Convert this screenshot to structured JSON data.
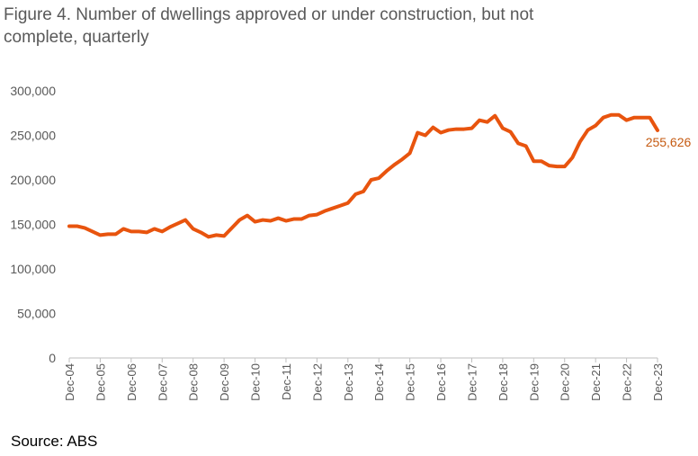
{
  "title": "Figure 4. Number of dwellings approved or under construction,  but not complete, quarterly",
  "source": "Source: ABS",
  "colors": {
    "line": "#E8540E",
    "axis": "#BFBFBF",
    "text": "#595959",
    "label": "#C55A11"
  },
  "chart_data": {
    "type": "line",
    "title": "Figure 4. Number of dwellings approved or under construction,  but not complete, quarterly",
    "xlabel": "",
    "ylabel": "",
    "ylim": [
      0,
      300000
    ],
    "grid": false,
    "yticks": [
      "0",
      "50,000",
      "100,000",
      "150,000",
      "200,000",
      "250,000",
      "300,000"
    ],
    "ytick_values": [
      0,
      50000,
      100000,
      150000,
      200000,
      250000,
      300000
    ],
    "xticks": [
      "Dec-04",
      "Dec-05",
      "Dec-06",
      "Dec-07",
      "Dec-08",
      "Dec-09",
      "Dec-10",
      "Dec-11",
      "Dec-12",
      "Dec-13",
      "Dec-14",
      "Dec-15",
      "Dec-16",
      "Dec-17",
      "Dec-18",
      "Dec-19",
      "Dec-20",
      "Dec-21",
      "Dec-22",
      "Dec-23"
    ],
    "end_label": "255,626",
    "series": [
      {
        "values": [
          148000,
          148000,
          146000,
          142000,
          138000,
          139000,
          139000,
          145000,
          142000,
          142000,
          141000,
          145000,
          142000,
          147000,
          151000,
          155000,
          145000,
          141000,
          136000,
          138000,
          137000,
          146000,
          155000,
          160000,
          153000,
          155000,
          154000,
          157000,
          154000,
          156000,
          156000,
          160000,
          161000,
          165000,
          168000,
          171000,
          174000,
          184000,
          187000,
          200000,
          202000,
          210000,
          217000,
          223000,
          230000,
          253000,
          250000,
          259000,
          253000,
          256000,
          257000,
          257000,
          258000,
          267000,
          265000,
          272000,
          258000,
          254000,
          241000,
          238000,
          221000,
          221000,
          216000,
          215000,
          215000,
          225000,
          243000,
          256000,
          261000,
          270000,
          273000,
          273000,
          267000,
          270000,
          270000,
          270000,
          255626
        ]
      }
    ]
  }
}
